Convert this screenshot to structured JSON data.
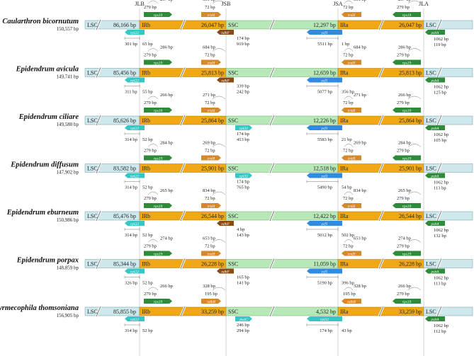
{
  "junctions": [
    "JLB",
    "JSB",
    "JSA",
    "JLA"
  ],
  "colors": {
    "lsc": "#cfe8ec",
    "ir": "#f0a814",
    "ssc": "#b8e8b8",
    "rps19": "#2e8b3a",
    "rpl22": "#35c6c6",
    "trnH": "#d6892b",
    "ycf1": "#2f8ae0",
    "ndhF": "#8b4a12",
    "psbA": "#2e8b3a",
    "rpl32": "#35c6c6"
  },
  "rows": [
    {
      "name": "Caularthron bicornutum",
      "total": "150,557 bp",
      "lsc_left": "86,166 bp",
      "irb": "26,047 bp",
      "ssc": "12,297 bp",
      "ira": "26,047 bp",
      "top_genes": [
        "297 bp",
        "279 bp",
        "331 bp",
        "72 bp",
        "331 bp",
        "72 bp",
        "297 bp",
        "279 bp"
      ],
      "rpl22": "rpl22",
      "rpl22_len": "301 bp",
      "jlb_gap": "65 bp",
      "ssc_gene": "ndhF",
      "ssc_gene_a": "174 bp",
      "ssc_gene_b": "919 bp",
      "ycf1_a": "5511 bp",
      "ycf1_b": "1 bp",
      "psba_a": "1062 bp",
      "psba_b": "119 bp"
    },
    {
      "name": "Epidendrum avicula",
      "total": "149,741 bp",
      "lsc_left": "85,456 bp",
      "irb": "25,813 bp",
      "ssc": "12,659 bp",
      "ira": "25,813 bp",
      "top_genes": [
        "286 bp",
        "279 bp",
        "684 bp",
        "72 bp",
        "684 bp",
        "72 bp",
        "286 bp",
        "279 bp"
      ],
      "rpl22": "rpl22",
      "rpl22_len": "311 bp",
      "jlb_gap": "55 bp",
      "ssc_gene": "ndhF",
      "ssc_gene_a": "339 bp",
      "ssc_gene_b": "242 bp",
      "ycf1_a": "5077 bp",
      "ycf1_b": "356 bp",
      "psba_a": "1062 bp",
      "psba_b": "125 bp"
    },
    {
      "name": "Epidendrum ciliare",
      "total": "149,580 bp",
      "lsc_left": "85,626 bp",
      "irb": "25,864 bp",
      "ssc": "12,226 bp",
      "ira": "25,864 bp",
      "top_genes": [
        "266 bp",
        "279 bp",
        "271 bp",
        "72 bp",
        "271 bp",
        "72 bp",
        "266 bp",
        "279 bp"
      ],
      "rpl22": "rpl22",
      "rpl22_len": "314 bp",
      "jlb_gap": "52 bp",
      "ssc_gene": "rpl32",
      "ssc_gene_a": "174 bp",
      "ssc_gene_b": "413 bp",
      "ycf1_a": "5583 bp",
      "ycf1_b": "21 bp",
      "psba_a": "1062 bp",
      "psba_b": "105 bp"
    },
    {
      "name": "Epidendrum diffusum",
      "total": "147,902 bp",
      "lsc_left": "83,582 bp",
      "irb": "25,901 bp",
      "ssc": "12,518 bp",
      "ira": "25,901 bp",
      "top_genes": [
        "284 bp",
        "279 bp",
        "269 bp",
        "72 bp",
        "269 bp",
        "72 bp",
        "284 bp",
        "279 bp"
      ],
      "rpl22": "rpl22",
      "rpl22_len": "314 bp",
      "jlb_gap": "52 bp",
      "ssc_gene": "rpl32",
      "ssc_gene_a": "174 bp",
      "ssc_gene_b": "765 bp",
      "ycf1_a": "5490 bp",
      "ycf1_b": "54 bp",
      "psba_a": "1062 bp",
      "psba_b": "113 bp"
    },
    {
      "name": "Epidendrum eburneum",
      "total": "150,986 bp",
      "lsc_left": "85,476 bp",
      "irb": "26,544 bp",
      "ssc": "12,422 bp",
      "ira": "26,544 bp",
      "top_genes": [
        "265 bp",
        "279 bp",
        "834 bp",
        "72 bp",
        "834 bp",
        "72 bp",
        "265 bp",
        "279 bp"
      ],
      "rpl22": "rpl22",
      "rpl22_len": "314 bp",
      "jlb_gap": "52 bp",
      "ssc_gene": "ndhF",
      "ssc_gene_a": "4 bp",
      "ssc_gene_b": "143 bp",
      "ycf1_a": "5012 bp",
      "ycf1_b": "502 bp",
      "psba_a": "1062 bp",
      "psba_b": "132 bp"
    },
    {
      "name": "Epidendrum porpax",
      "total": "148,859 bp",
      "lsc_left": "85,344 bp",
      "irb": "26,228 bp",
      "ssc": "11,059 bp",
      "ira": "26,228 bp",
      "top_genes": [
        "274 bp",
        "279 bp",
        "653 bp",
        "72 bp",
        "653 bp",
        "72 bp",
        "274 bp",
        "279 bp"
      ],
      "rpl22": "rpl22",
      "rpl22_len": "326 bp",
      "jlb_gap": "52 bp",
      "ssc_gene": "ndhF",
      "ssc_gene_a": "165 bp",
      "ssc_gene_b": "141 bp",
      "ycf1_a": "5190 bp",
      "ycf1_b": "396 bp",
      "psba_a": "1062 bp",
      "psba_b": "113 bp"
    },
    {
      "name": "Myrmecophila thomsoniana",
      "total": "156,905 bp",
      "lsc_left": "85,855 bp",
      "irb": "33,259 bp",
      "ssc": "4,532 bp",
      "ira": "33,259 bp",
      "top_genes": [
        "266 bp",
        "279 bp",
        "328 bp",
        "195 bp",
        "328 bp",
        "195 bp",
        "266 bp",
        "279 bp"
      ],
      "rpl22": "rpl22",
      "rpl22_len": "314 bp",
      "jlb_gap": "52 bp",
      "ssc_gene": "psaC",
      "ssc_gene_a": "246 bp",
      "ssc_gene_b": "294 bp",
      "ycf1_a": "174 bp",
      "ycf1_b": "43 bp",
      "psba_a": "1062 bp",
      "psba_b": "112 bp"
    }
  ],
  "labels": {
    "lsc": "LSC",
    "irb": "IRb",
    "ssc": "SSC",
    "ira": "IRa",
    "rps19": "rps19",
    "trnH": "trnH",
    "ycf1": "ycf1",
    "psbA": "psbA",
    "ndhB": "ndhB",
    "rpl32": "rpl32"
  }
}
